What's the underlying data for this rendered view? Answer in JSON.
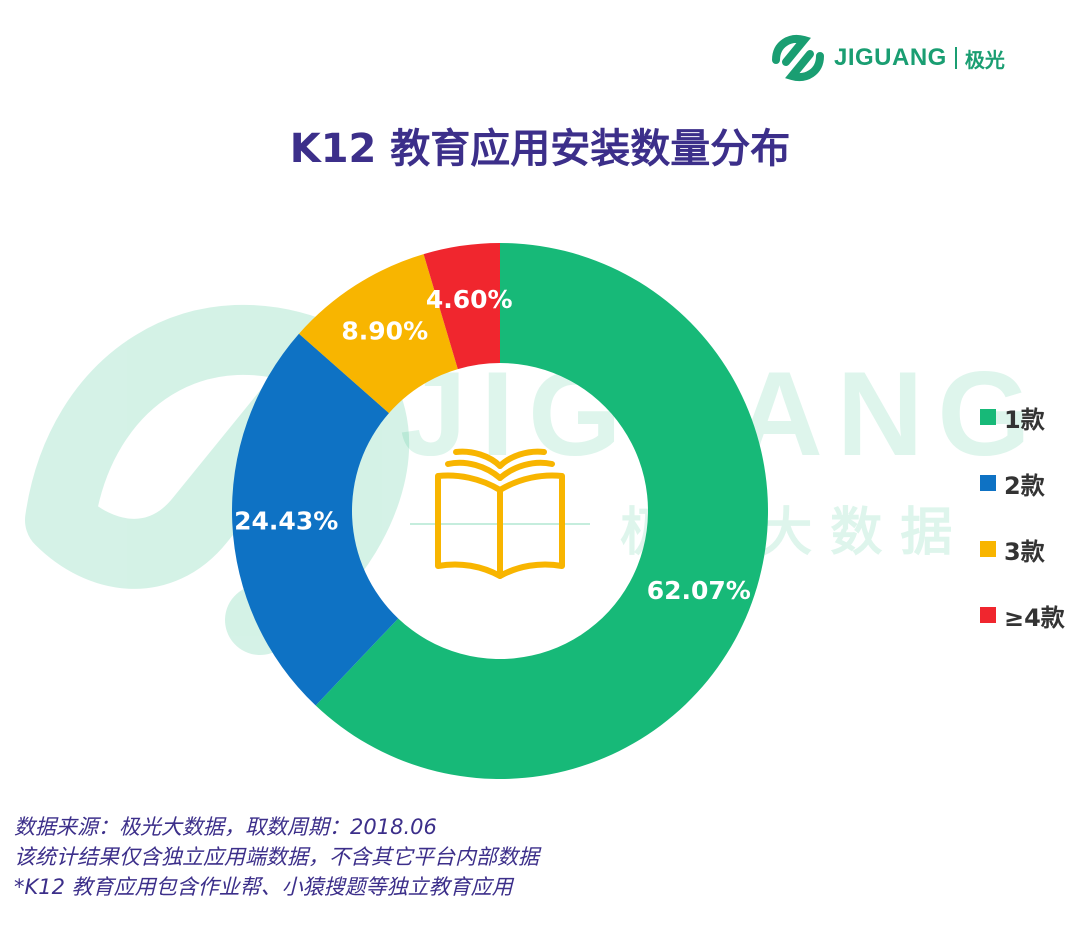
{
  "brand": {
    "name": "JIGUANG",
    "name_cn": "极光",
    "color": "#1a9e72"
  },
  "watermark": {
    "text": "JIGUANG",
    "text_cn": "极 光 大 数 据"
  },
  "chart_data": {
    "type": "pie",
    "subtype": "donut",
    "title": "K12 教育应用安装数量分布",
    "categories": [
      "1款",
      "2款",
      "3款",
      "≥4款"
    ],
    "values": [
      62.07,
      24.43,
      8.9,
      4.6
    ],
    "labels": [
      "62.07%",
      "24.43%",
      "8.90%",
      "4.60%"
    ],
    "colors": [
      "#17b978",
      "#0e72c4",
      "#f8b500",
      "#f0262e"
    ],
    "legend_position": "right",
    "center_icon": "open-book-icon"
  },
  "notes": [
    "数据来源：极光大数据，取数周期：2018.06",
    "该统计结果仅含独立应用端数据，不含其它平台内部数据",
    " *K12 教育应用包含作业帮、小猿搜题等独立教育应用"
  ]
}
